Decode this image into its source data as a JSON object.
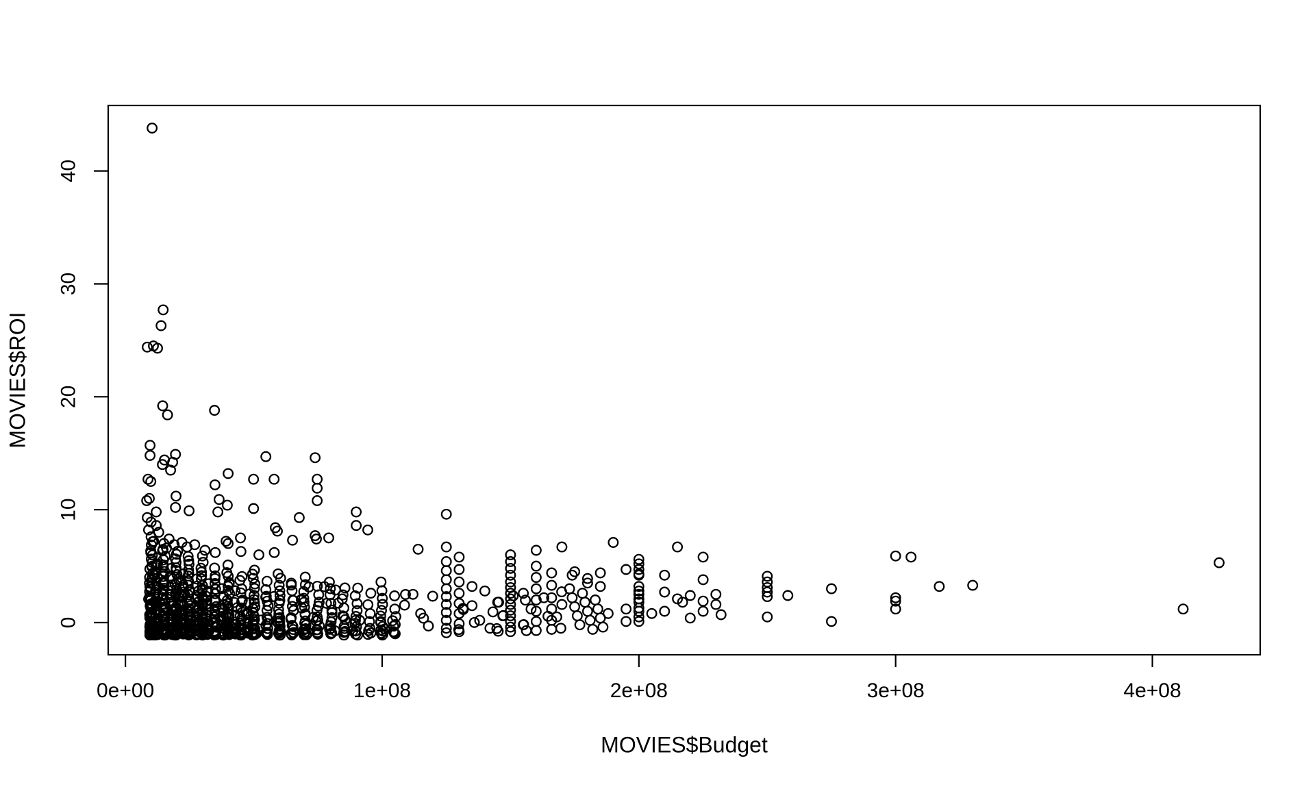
{
  "window": {
    "background": "#ffffff",
    "foreground": "#000000"
  },
  "chart_data": {
    "type": "scatter",
    "title": "",
    "xlabel": "MOVIES$Budget",
    "ylabel": "MOVIES$ROI",
    "grid": false,
    "legend": null,
    "x_unit": "USD; all budget values below are in millions (1 = 1e+06)",
    "x_ticks": {
      "values_M": [
        0,
        100,
        200,
        300,
        400
      ],
      "labels": [
        "0e+00",
        "1e+08",
        "2e+08",
        "3e+08",
        "4e+08"
      ]
    },
    "y_ticks": {
      "values": [
        0,
        10,
        20,
        30,
        40
      ],
      "labels": [
        "0",
        "10",
        "20",
        "30",
        "40"
      ]
    },
    "xlim_M": [
      -6.7,
      442
    ],
    "ylim": [
      -2.85,
      45.8
    ],
    "marker": {
      "shape": "open-circle",
      "color": "#000000",
      "radius_px": 6.8,
      "stroke_px": 2.3
    },
    "points_M_roi": [
      [
        10.4,
        43.8
      ],
      [
        14.7,
        27.7
      ],
      [
        13.9,
        26.3
      ],
      [
        8.5,
        24.4
      ],
      [
        10.9,
        24.5
      ],
      [
        12.5,
        24.3
      ],
      [
        14.5,
        19.2
      ],
      [
        16.4,
        18.4
      ],
      [
        34.7,
        18.8
      ],
      [
        9.6,
        15.7
      ],
      [
        9.6,
        14.8
      ],
      [
        19.5,
        14.9
      ],
      [
        15.2,
        14.4
      ],
      [
        18.4,
        14.2
      ],
      [
        14.4,
        14.0
      ],
      [
        17.6,
        13.5
      ],
      [
        54.7,
        14.7
      ],
      [
        73.9,
        14.6
      ],
      [
        40,
        13.2
      ],
      [
        49.9,
        12.7
      ],
      [
        57.9,
        12.7
      ],
      [
        74.7,
        12.7
      ],
      [
        34.9,
        12.2
      ],
      [
        8.8,
        12.7
      ],
      [
        9.9,
        12.5
      ],
      [
        74.7,
        11.9
      ],
      [
        74.7,
        10.8
      ],
      [
        19.7,
        11.2
      ],
      [
        9.3,
        11.0
      ],
      [
        8.3,
        10.8
      ],
      [
        36.5,
        10.9
      ],
      [
        39.7,
        10.4
      ],
      [
        36,
        9.8
      ],
      [
        49.9,
        10.1
      ],
      [
        12,
        9.8
      ],
      [
        19.5,
        10.2
      ],
      [
        24.8,
        9.9
      ],
      [
        67.7,
        9.3
      ],
      [
        89.9,
        9.8
      ],
      [
        89.9,
        8.6
      ],
      [
        94.4,
        8.2
      ],
      [
        58.4,
        8.4
      ],
      [
        59.2,
        8.1
      ],
      [
        65.1,
        7.3
      ],
      [
        73.9,
        7.7
      ],
      [
        74.4,
        7.4
      ],
      [
        79.2,
        7.5
      ],
      [
        44.8,
        7.5
      ],
      [
        39.2,
        7.2
      ],
      [
        40,
        7.0
      ],
      [
        8.5,
        9.3
      ],
      [
        10,
        8.9
      ],
      [
        12,
        8.6
      ],
      [
        9,
        8.2
      ],
      [
        13,
        8.0
      ],
      [
        10,
        7.6
      ],
      [
        11,
        7.2
      ],
      [
        15,
        7.0
      ],
      [
        17,
        7.4
      ],
      [
        19,
        6.9
      ],
      [
        22,
        7.1
      ],
      [
        24,
        6.7
      ],
      [
        27,
        6.9
      ],
      [
        16,
        6.6
      ],
      [
        31,
        6.4
      ],
      [
        35,
        6.2
      ],
      [
        45,
        6.3
      ],
      [
        52,
        6.0
      ],
      [
        58,
        6.2
      ],
      [
        30,
        5.9
      ],
      [
        125,
        9.6
      ],
      [
        125,
        6.7
      ],
      [
        114,
        6.5
      ],
      [
        160,
        6.4
      ],
      [
        170,
        6.7
      ],
      [
        190,
        7.1
      ],
      [
        215,
        6.7
      ],
      [
        225,
        5.8
      ],
      [
        112,
        2.5
      ],
      [
        115,
        0.8
      ],
      [
        118,
        -0.3
      ],
      [
        135,
        3.2
      ],
      [
        135,
        1.5
      ],
      [
        138,
        0.2
      ],
      [
        140,
        2.8
      ],
      [
        142,
        -0.5
      ],
      [
        145,
        1.8
      ],
      [
        147,
        0.6
      ],
      [
        155,
        2.6
      ],
      [
        155,
        -0.2
      ],
      [
        158,
        1.2
      ],
      [
        163,
        2.2
      ],
      [
        168,
        0.5
      ],
      [
        170,
        1.6
      ],
      [
        125,
        5.4
      ],
      [
        125,
        4.6
      ],
      [
        125,
        3.8
      ],
      [
        125,
        3.0
      ],
      [
        125,
        2.3
      ],
      [
        125,
        1.6
      ],
      [
        125,
        0.9
      ],
      [
        125,
        0.2
      ],
      [
        125,
        -0.5
      ],
      [
        125,
        -0.9
      ],
      [
        130,
        5.8
      ],
      [
        130,
        4.7
      ],
      [
        130,
        3.6
      ],
      [
        130,
        2.6
      ],
      [
        130,
        1.7
      ],
      [
        130,
        0.8
      ],
      [
        130,
        -0.1
      ],
      [
        130,
        -0.8
      ],
      [
        150,
        6.0
      ],
      [
        150,
        5.4
      ],
      [
        150,
        4.8
      ],
      [
        150,
        4.2
      ],
      [
        150,
        3.6
      ],
      [
        150,
        3.1
      ],
      [
        150,
        2.6
      ],
      [
        150,
        2.1
      ],
      [
        150,
        1.6
      ],
      [
        150,
        1.1
      ],
      [
        150,
        0.6
      ],
      [
        150,
        0.1
      ],
      [
        150,
        -0.4
      ],
      [
        150,
        -0.8
      ],
      [
        160,
        5.0
      ],
      [
        160,
        4.0
      ],
      [
        160,
        3.0
      ],
      [
        160,
        2.0
      ],
      [
        160,
        1.0
      ],
      [
        160,
        0.1
      ],
      [
        160,
        -0.7
      ],
      [
        166,
        4.4
      ],
      [
        166,
        3.3
      ],
      [
        166,
        2.2
      ],
      [
        166,
        1.2
      ],
      [
        166,
        0.2
      ],
      [
        166,
        -0.6
      ],
      [
        173,
        3.0
      ],
      [
        174,
        2.2
      ],
      [
        175,
        1.4
      ],
      [
        176,
        0.6
      ],
      [
        177,
        -0.2
      ],
      [
        178,
        2.6
      ],
      [
        179,
        1.8
      ],
      [
        180,
        1.0
      ],
      [
        181,
        0.2
      ],
      [
        182,
        -0.6
      ],
      [
        183,
        2.0
      ],
      [
        184,
        1.2
      ],
      [
        185,
        0.4
      ],
      [
        186,
        -0.4
      ],
      [
        188,
        0.8
      ],
      [
        185,
        4.4
      ],
      [
        185,
        3.2
      ],
      [
        195,
        4.7
      ],
      [
        180,
        3.9
      ],
      [
        180,
        3.5
      ],
      [
        175,
        4.5
      ],
      [
        174,
        4.2
      ],
      [
        200,
        5.6
      ],
      [
        200,
        5.2
      ],
      [
        200,
        4.7
      ],
      [
        200,
        4.3
      ],
      [
        200,
        4.2
      ],
      [
        200,
        3.2
      ],
      [
        200,
        2.8
      ],
      [
        200,
        2.5
      ],
      [
        200,
        2.1
      ],
      [
        200,
        1.8
      ],
      [
        200,
        1.3
      ],
      [
        200,
        1.0
      ],
      [
        200,
        0.5
      ],
      [
        200,
        0.1
      ],
      [
        195,
        1.2
      ],
      [
        195,
        0.1
      ],
      [
        205,
        0.8
      ],
      [
        210,
        1.0
      ],
      [
        210,
        4.2
      ],
      [
        210,
        2.7
      ],
      [
        215,
        2.1
      ],
      [
        217,
        1.8
      ],
      [
        220,
        2.4
      ],
      [
        220,
        0.4
      ],
      [
        225,
        3.8
      ],
      [
        225,
        1.9
      ],
      [
        225,
        1.0
      ],
      [
        230,
        2.5
      ],
      [
        230,
        1.6
      ],
      [
        232,
        0.7
      ],
      [
        250,
        4.1
      ],
      [
        250,
        3.6
      ],
      [
        250,
        3.1
      ],
      [
        250,
        2.7
      ],
      [
        250,
        2.3
      ],
      [
        250,
        0.5
      ],
      [
        258,
        2.4
      ],
      [
        275,
        3.0
      ],
      [
        275,
        0.1
      ],
      [
        300,
        5.9
      ],
      [
        306,
        5.8
      ],
      [
        300,
        2.2
      ],
      [
        300,
        1.9
      ],
      [
        300,
        1.2
      ],
      [
        317,
        3.2
      ],
      [
        330,
        3.3
      ],
      [
        412,
        1.2
      ],
      [
        426,
        5.3
      ]
    ],
    "dense_cloud": {
      "note": "dense low-ROI mass; columns are [budget_M, count, roi_max], ROI spread from -1.05 upward",
      "seed": 20,
      "columns": [
        [
          10,
          60,
          7.2
        ],
        [
          12,
          38,
          5.5
        ],
        [
          15,
          46,
          6.8
        ],
        [
          18,
          26,
          5.0
        ],
        [
          20,
          42,
          6.5
        ],
        [
          22,
          22,
          4.5
        ],
        [
          25,
          36,
          6.2
        ],
        [
          28,
          18,
          4.2
        ],
        [
          30,
          34,
          5.5
        ],
        [
          32,
          14,
          3.8
        ],
        [
          35,
          26,
          5.0
        ],
        [
          38,
          12,
          3.5
        ],
        [
          40,
          28,
          5.2
        ],
        [
          43,
          10,
          3.2
        ],
        [
          45,
          20,
          4.5
        ],
        [
          48,
          9,
          3.0
        ],
        [
          50,
          26,
          5.0
        ],
        [
          55,
          16,
          4.0
        ],
        [
          60,
          22,
          4.6
        ],
        [
          65,
          14,
          3.8
        ],
        [
          70,
          18,
          4.2
        ],
        [
          75,
          12,
          3.6
        ],
        [
          80,
          15,
          4.0
        ],
        [
          85,
          10,
          3.4
        ],
        [
          90,
          12,
          3.6
        ],
        [
          95,
          8,
          3.0
        ],
        [
          100,
          14,
          4.0
        ],
        [
          105,
          7,
          2.8
        ]
      ],
      "scatter": {
        "count": 90,
        "x_min": 9,
        "x_span": 161,
        "x_power": 1.8,
        "roi_min": -1,
        "roi_span": 4.6,
        "roi_power": 1.6
      }
    }
  }
}
